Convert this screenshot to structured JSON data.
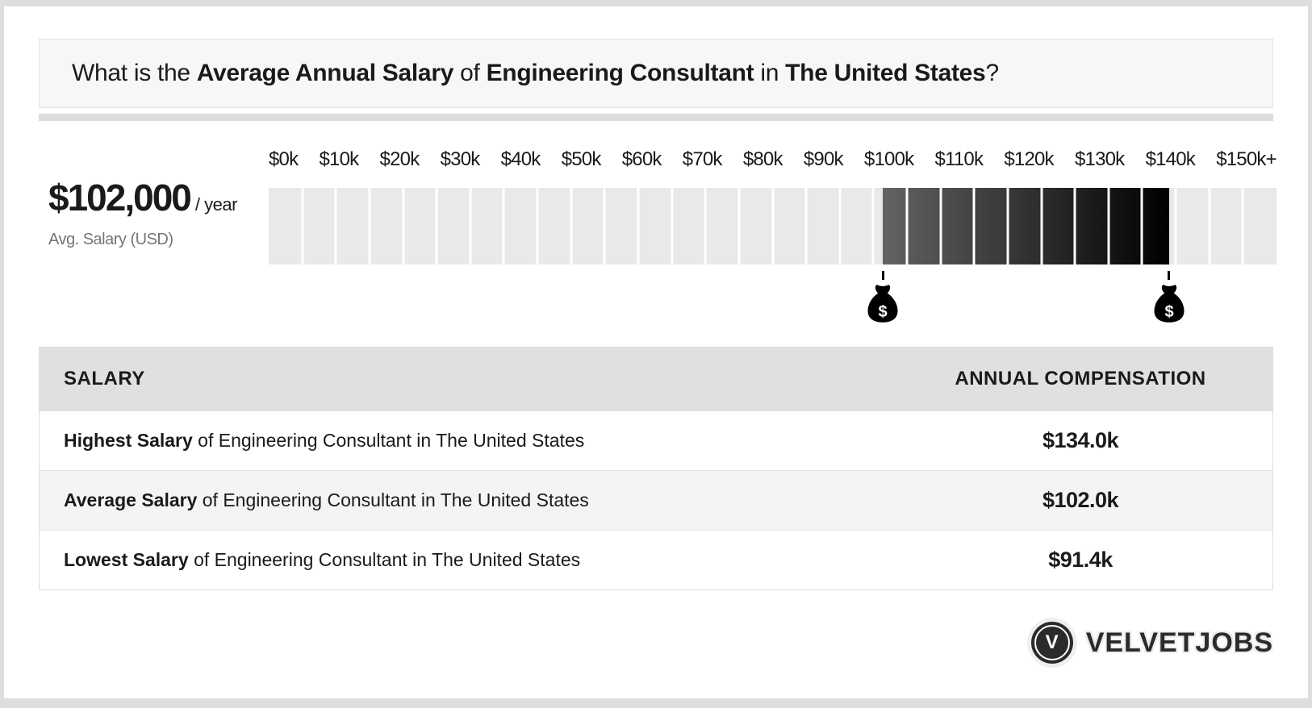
{
  "header": {
    "parts": [
      {
        "text": "What is the ",
        "bold": false
      },
      {
        "text": "Average Annual Salary",
        "bold": true
      },
      {
        "text": " of ",
        "bold": false
      },
      {
        "text": "Engineering Consultant",
        "bold": true
      },
      {
        "text": " in ",
        "bold": false
      },
      {
        "text": "The United States",
        "bold": true
      },
      {
        "text": "?",
        "bold": false
      }
    ]
  },
  "avg_salary": {
    "amount": "$102,000",
    "per": "/ year",
    "label": "Avg. Salary (USD)"
  },
  "colors": {
    "frame_gray": "#dedede",
    "bar_light": "#e9e9e9",
    "highlight_start": "#636363",
    "highlight_end": "#000000",
    "table_header_bg": "#e0e0e0",
    "alt_row_bg": "#f4f4f4"
  },
  "chart_data": {
    "type": "bar",
    "title": "Salary scale for Engineering Consultant in The United States",
    "axis_labels": [
      "$0k",
      "$10k",
      "$20k",
      "$30k",
      "$40k",
      "$50k",
      "$60k",
      "$70k",
      "$80k",
      "$90k",
      "$100k",
      "$110k",
      "$120k",
      "$130k",
      "$140k",
      "$150k+"
    ],
    "axis_min_usd": 0,
    "axis_max_usd": 150000,
    "segment_count": 30,
    "segment_step_usd": 5000,
    "grid": "off",
    "legend": "none",
    "highlight_range": {
      "lowest_usd": 91400,
      "average_usd": 102000,
      "highest_usd": 134000
    },
    "markers": [
      {
        "name": "lowest-salary-marker",
        "value_usd": 91400,
        "icon": "money-bag-icon",
        "icon_glyph": "$"
      },
      {
        "name": "highest-salary-marker",
        "value_usd": 134000,
        "icon": "money-bag-icon",
        "icon_glyph": "$"
      }
    ]
  },
  "table": {
    "headers": {
      "salary": "SALARY",
      "compensation": "ANNUAL COMPENSATION"
    },
    "rows": [
      {
        "label_bold": "Highest Salary",
        "label_rest": " of Engineering Consultant in The United States",
        "value": "$134.0k"
      },
      {
        "label_bold": "Average Salary",
        "label_rest": " of Engineering Consultant in The United States",
        "value": "$102.0k"
      },
      {
        "label_bold": "Lowest Salary",
        "label_rest": " of Engineering Consultant in The United States",
        "value": "$91.4k"
      }
    ]
  },
  "footer": {
    "logo_letter": "V",
    "brand": "VELVETJOBS"
  }
}
